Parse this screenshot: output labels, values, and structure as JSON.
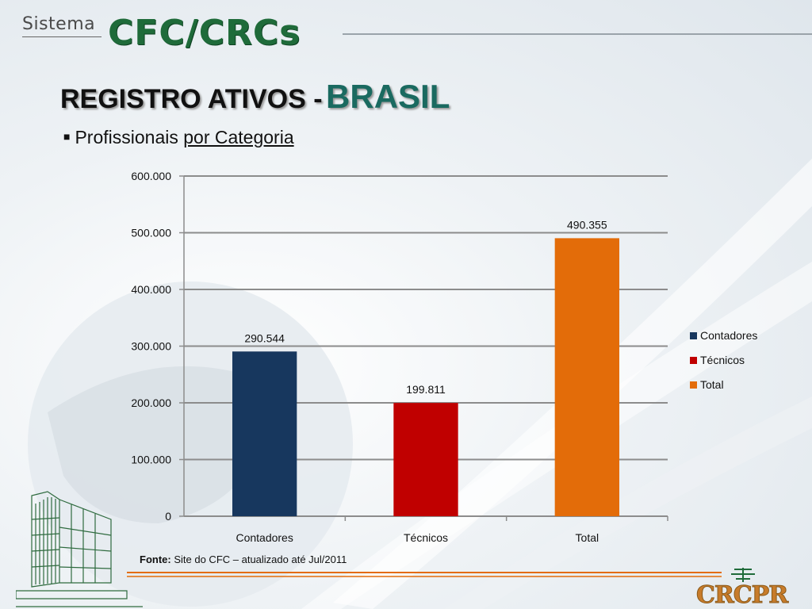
{
  "header": {
    "logo_small": "Sistema",
    "logo_large": "CFC/CRCs"
  },
  "title": {
    "part1": "REGISTRO ATIVOS -",
    "part2": "BRASIL"
  },
  "subtitle": {
    "bullet": "■",
    "text1": "Profissionais",
    "text2": "por Categoria"
  },
  "source": {
    "label": "Fonte:",
    "text": "Site do CFC – atualizado até Jul/2011"
  },
  "footer_logo": "CRCPR",
  "colors": {
    "Contadores": "#17375e",
    "Técnicos": "#c00000",
    "Total": "#e36c09",
    "title_accent": "#1a6a60",
    "brand_green": "#1f6b3a"
  },
  "chart_data": {
    "type": "bar",
    "categories": [
      "Contadores",
      "Técnicos",
      "Total"
    ],
    "values": [
      290544,
      199811,
      490355
    ],
    "data_labels": [
      "290.544",
      "199.811",
      "490.355"
    ],
    "yticks": [
      0,
      100000,
      200000,
      300000,
      400000,
      500000,
      600000
    ],
    "ytick_labels": [
      "0",
      "100.000",
      "200.000",
      "300.000",
      "400.000",
      "500.000",
      "600.000"
    ],
    "ylim": [
      0,
      600000
    ],
    "legend": [
      "Contadores",
      "Técnicos",
      "Total"
    ],
    "legend_position": "right",
    "grid": true,
    "title": "",
    "xlabel": "",
    "ylabel": ""
  }
}
